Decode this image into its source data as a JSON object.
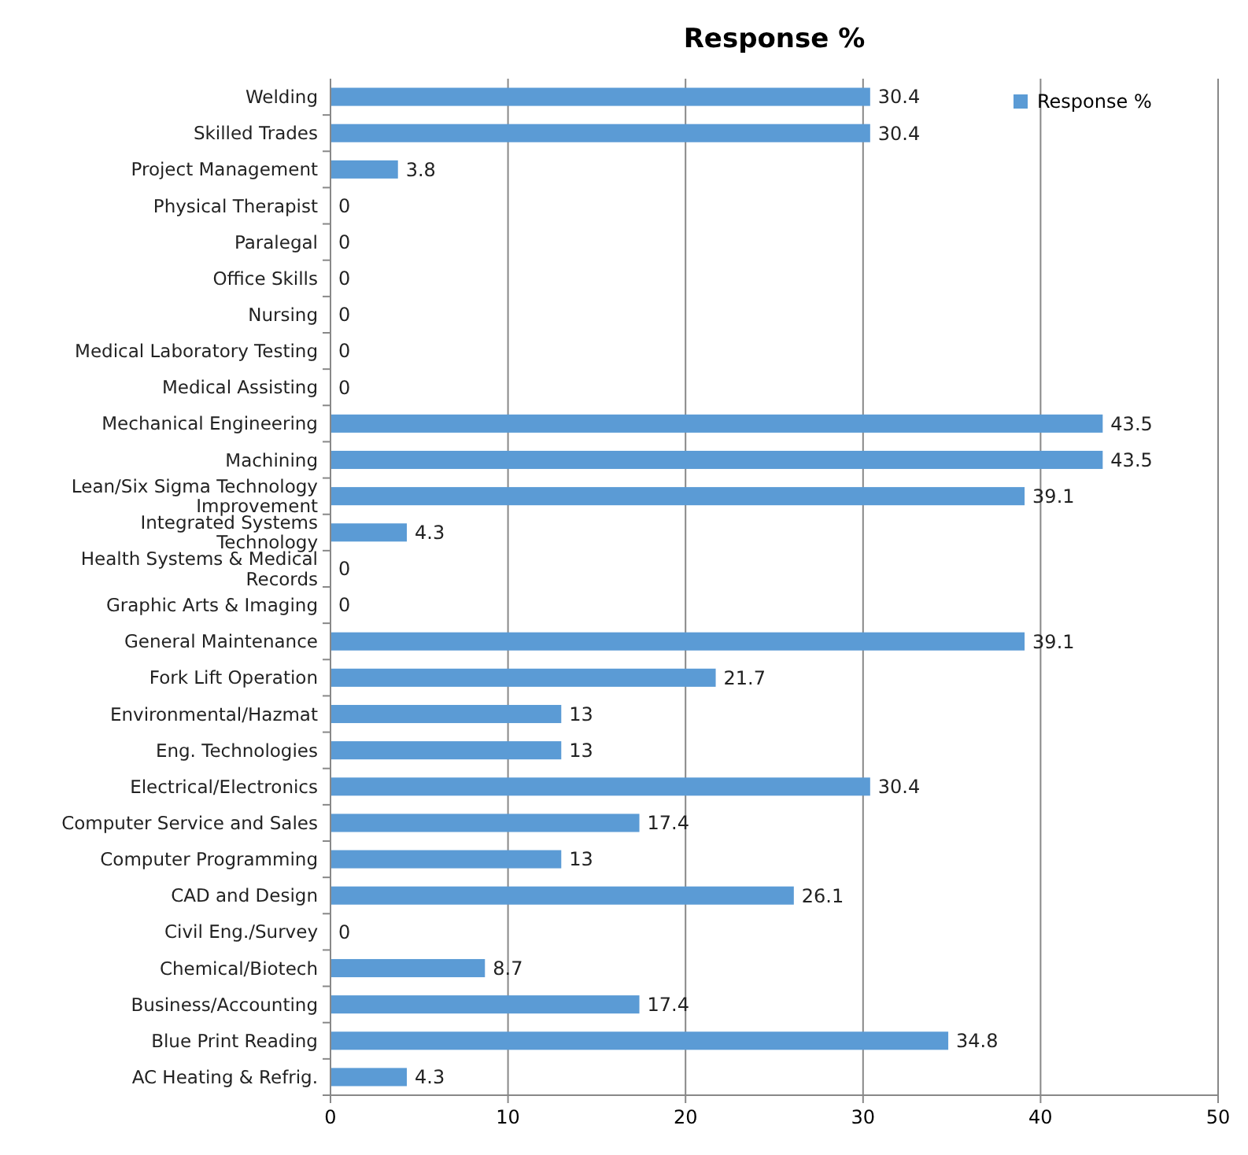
{
  "chart_data": {
    "type": "bar",
    "orientation": "horizontal",
    "title": "Response %",
    "categories": [
      "Welding",
      "Skilled Trades",
      "Project Management",
      "Physical Therapist",
      "Paralegal",
      "Office Skills",
      "Nursing",
      "Medical Laboratory Testing",
      "Medical Assisting",
      "Mechanical Engineering",
      "Machining",
      "Lean/Six Sigma Technology Improvement",
      "Integrated Systems Technology",
      "Health Systems & Medical Records",
      "Graphic Arts & Imaging",
      "General Maintenance",
      "Fork Lift Operation",
      "Environmental/Hazmat",
      "Eng. Technologies",
      "Electrical/Electronics",
      "Computer Service and Sales",
      "Computer Programming",
      "CAD and Design",
      "Civil Eng./Survey",
      "Chemical/Biotech",
      "Business/Accounting",
      "Blue Print Reading",
      "AC Heating & Refrig."
    ],
    "series": [
      {
        "name": "Response %",
        "color": "#5b9bd5",
        "values": [
          30.4,
          30.4,
          3.8,
          0,
          0,
          0,
          0,
          0,
          0,
          43.5,
          43.5,
          39.1,
          4.3,
          0,
          0,
          39.1,
          21.7,
          13,
          13,
          30.4,
          17.4,
          13,
          26.1,
          0,
          8.7,
          17.4,
          34.8,
          4.3
        ]
      }
    ],
    "xlim": [
      0,
      50
    ],
    "xticks": [
      0,
      10,
      20,
      30,
      40,
      50
    ],
    "grid": "x",
    "legend": "top right",
    "data_labels": true
  }
}
